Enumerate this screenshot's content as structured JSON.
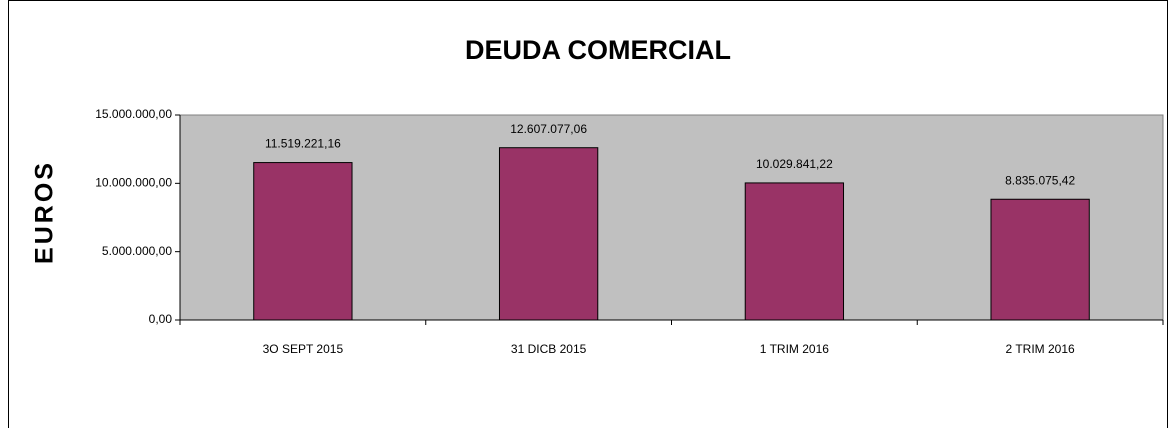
{
  "chart_data": {
    "type": "bar",
    "title": "DEUDA COMERCIAL",
    "y_label": "EUROS",
    "categories": [
      "3O SEPT 2015",
      "31 DICB 2015",
      "1 TRIM 2016",
      "2 TRIM 2016"
    ],
    "values": [
      11519221.16,
      12607077.06,
      10029841.22,
      8835075.42
    ],
    "value_labels": [
      "11.519.221,16",
      "12.607.077,06",
      "10.029.841,22",
      "8.835.075,42"
    ],
    "color": "#993366",
    "ylim": [
      0,
      15000000
    ],
    "yticks": [
      {
        "value": 0,
        "label": "0,00"
      },
      {
        "value": 5000000,
        "label": "5.000.000,00"
      },
      {
        "value": 10000000,
        "label": "10.000.000,00"
      },
      {
        "value": 15000000,
        "label": "15.000.000,00"
      }
    ],
    "grid": false
  }
}
